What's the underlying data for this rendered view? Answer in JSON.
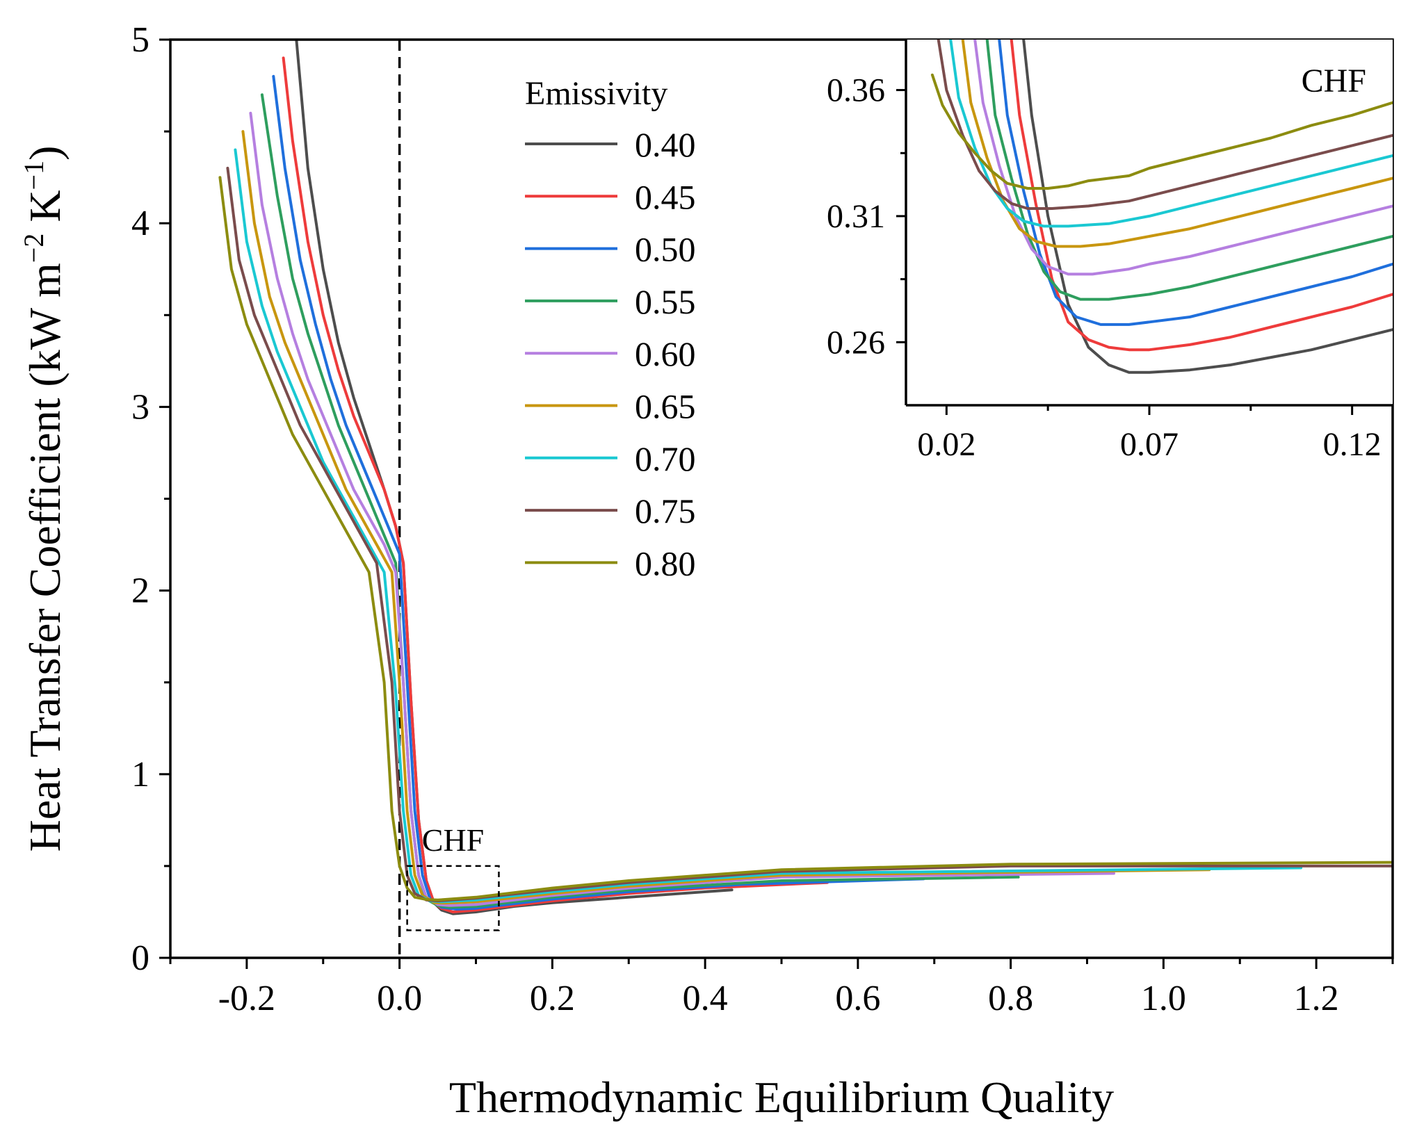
{
  "chart_data": [
    {
      "id": "main",
      "type": "line",
      "title": "",
      "xlabel": "Thermodynamic Equilibrium Quality",
      "ylabel": "Heat Transfer Coefficient (kW m−2 K−1)",
      "ylabel_parts": [
        "Heat Transfer Coefficient (kW m",
        "−2",
        " K",
        "−1",
        ")"
      ],
      "xlim": [
        -0.3,
        1.3
      ],
      "ylim": [
        0,
        5
      ],
      "xticks": [
        -0.2,
        0.0,
        0.2,
        0.4,
        0.6,
        0.8,
        1.0,
        1.2
      ],
      "xtick_labels": [
        "-0.2",
        "0.0",
        "0.2",
        "0.4",
        "0.6",
        "0.8",
        "1.0",
        "1.2"
      ],
      "yticks": [
        0,
        1,
        2,
        3,
        4,
        5
      ],
      "ytick_labels": [
        "0",
        "1",
        "2",
        "3",
        "4",
        "5"
      ],
      "grid": false,
      "legend": {
        "title": "Emissivity",
        "placement": "top-center",
        "entries": [
          "0.40",
          "0.45",
          "0.50",
          "0.55",
          "0.60",
          "0.65",
          "0.70",
          "0.75",
          "0.80"
        ]
      },
      "annotations": {
        "saturation_line_x": 0.0,
        "chf_label": "CHF",
        "chf_box": {
          "x": [
            0.01,
            0.13
          ],
          "y": [
            0.15,
            0.5
          ]
        }
      },
      "series": [
        {
          "name": "0.40",
          "color": "#4d4d4d",
          "x": [
            -0.135,
            -0.12,
            -0.1,
            -0.08,
            -0.06,
            -0.04,
            -0.02,
            -0.005,
            0.005,
            0.015,
            0.025,
            0.035,
            0.045,
            0.055,
            0.07,
            0.1,
            0.15,
            0.2,
            0.3,
            0.435
          ],
          "y": [
            5.0,
            4.3,
            3.75,
            3.35,
            3.05,
            2.8,
            2.55,
            2.35,
            2.15,
            1.4,
            0.75,
            0.42,
            0.3,
            0.26,
            0.24,
            0.25,
            0.28,
            0.3,
            0.33,
            0.37
          ]
        },
        {
          "name": "0.45",
          "color": "#ee3b3b",
          "x": [
            -0.152,
            -0.14,
            -0.12,
            -0.1,
            -0.08,
            -0.06,
            -0.04,
            -0.02,
            -0.005,
            0.005,
            0.015,
            0.025,
            0.035,
            0.045,
            0.055,
            0.07,
            0.1,
            0.2,
            0.3,
            0.4,
            0.56
          ],
          "y": [
            4.9,
            4.45,
            3.9,
            3.5,
            3.2,
            2.95,
            2.75,
            2.55,
            2.35,
            2.15,
            1.4,
            0.75,
            0.42,
            0.3,
            0.27,
            0.25,
            0.26,
            0.31,
            0.35,
            0.38,
            0.41
          ]
        },
        {
          "name": "0.50",
          "color": "#1f6fdc",
          "x": [
            -0.165,
            -0.15,
            -0.13,
            -0.11,
            -0.09,
            -0.07,
            -0.05,
            -0.03,
            -0.01,
            0.0,
            0.01,
            0.02,
            0.03,
            0.04,
            0.055,
            0.075,
            0.1,
            0.2,
            0.3,
            0.45,
            0.686
          ],
          "y": [
            4.8,
            4.3,
            3.8,
            3.45,
            3.15,
            2.9,
            2.7,
            2.5,
            2.3,
            2.2,
            1.5,
            0.8,
            0.45,
            0.32,
            0.275,
            0.265,
            0.27,
            0.32,
            0.36,
            0.4,
            0.43
          ]
        },
        {
          "name": "0.55",
          "color": "#2e9e5e",
          "x": [
            -0.18,
            -0.16,
            -0.14,
            -0.12,
            -0.1,
            -0.08,
            -0.06,
            -0.04,
            -0.02,
            -0.005,
            0.005,
            0.015,
            0.025,
            0.035,
            0.05,
            0.065,
            0.1,
            0.2,
            0.3,
            0.5,
            0.81
          ],
          "y": [
            4.7,
            4.15,
            3.7,
            3.4,
            3.15,
            2.9,
            2.7,
            2.5,
            2.3,
            2.15,
            1.5,
            0.8,
            0.45,
            0.32,
            0.285,
            0.275,
            0.28,
            0.33,
            0.37,
            0.42,
            0.44
          ]
        },
        {
          "name": "0.60",
          "color": "#b57fe0",
          "x": [
            -0.195,
            -0.18,
            -0.16,
            -0.14,
            -0.12,
            -0.1,
            -0.08,
            -0.06,
            -0.04,
            -0.02,
            -0.005,
            0.005,
            0.015,
            0.025,
            0.035,
            0.05,
            0.065,
            0.1,
            0.2,
            0.3,
            0.5,
            0.935
          ],
          "y": [
            4.6,
            4.1,
            3.7,
            3.4,
            3.15,
            2.95,
            2.75,
            2.55,
            2.4,
            2.25,
            2.1,
            1.5,
            0.8,
            0.45,
            0.33,
            0.29,
            0.285,
            0.29,
            0.34,
            0.38,
            0.44,
            0.46
          ]
        },
        {
          "name": "0.65",
          "color": "#c8960f",
          "x": [
            -0.205,
            -0.19,
            -0.17,
            -0.15,
            -0.13,
            -0.11,
            -0.09,
            -0.07,
            -0.05,
            -0.03,
            -0.01,
            0.0,
            0.01,
            0.02,
            0.03,
            0.045,
            0.06,
            0.1,
            0.2,
            0.3,
            0.5,
            1.06
          ],
          "y": [
            4.5,
            4.0,
            3.6,
            3.35,
            3.15,
            2.95,
            2.75,
            2.55,
            2.4,
            2.25,
            2.1,
            1.5,
            0.8,
            0.45,
            0.34,
            0.3,
            0.298,
            0.305,
            0.35,
            0.39,
            0.45,
            0.48
          ]
        },
        {
          "name": "0.70",
          "color": "#1ac8d2",
          "x": [
            -0.215,
            -0.2,
            -0.18,
            -0.16,
            -0.14,
            -0.12,
            -0.1,
            -0.08,
            -0.06,
            -0.04,
            -0.02,
            -0.005,
            0.005,
            0.015,
            0.025,
            0.04,
            0.055,
            0.1,
            0.2,
            0.3,
            0.5,
            1.18
          ],
          "y": [
            4.4,
            3.9,
            3.55,
            3.3,
            3.1,
            2.9,
            2.7,
            2.55,
            2.4,
            2.25,
            2.1,
            1.45,
            0.8,
            0.45,
            0.34,
            0.31,
            0.305,
            0.315,
            0.36,
            0.4,
            0.46,
            0.49
          ]
        },
        {
          "name": "0.75",
          "color": "#7a4c4c",
          "x": [
            -0.225,
            -0.21,
            -0.19,
            -0.17,
            -0.15,
            -0.13,
            -0.11,
            -0.09,
            -0.07,
            -0.05,
            -0.03,
            -0.01,
            0.0,
            0.01,
            0.02,
            0.035,
            0.05,
            0.1,
            0.2,
            0.3,
            0.5,
            0.8,
            1.3
          ],
          "y": [
            4.3,
            3.8,
            3.5,
            3.3,
            3.1,
            2.9,
            2.75,
            2.6,
            2.45,
            2.3,
            2.15,
            1.5,
            0.8,
            0.45,
            0.35,
            0.315,
            0.31,
            0.325,
            0.37,
            0.41,
            0.47,
            0.5,
            0.5
          ]
        },
        {
          "name": "0.80",
          "color": "#8c8c10",
          "x": [
            -0.235,
            -0.22,
            -0.2,
            -0.18,
            -0.16,
            -0.14,
            -0.12,
            -0.1,
            -0.08,
            -0.06,
            -0.04,
            -0.02,
            -0.01,
            0.0,
            0.01,
            0.02,
            0.035,
            0.05,
            0.1,
            0.2,
            0.3,
            0.5,
            0.8,
            1.3
          ],
          "y": [
            4.25,
            3.75,
            3.45,
            3.25,
            3.05,
            2.85,
            2.7,
            2.55,
            2.4,
            2.25,
            2.1,
            1.5,
            0.8,
            0.5,
            0.38,
            0.33,
            0.318,
            0.315,
            0.33,
            0.38,
            0.42,
            0.48,
            0.51,
            0.52
          ]
        }
      ]
    },
    {
      "id": "inset",
      "type": "line",
      "title": "CHF",
      "xlabel": "",
      "ylabel": "",
      "xlim": [
        0.01,
        0.13
      ],
      "ylim": [
        0.235,
        0.38
      ],
      "xticks": [
        0.02,
        0.07,
        0.12
      ],
      "xtick_labels": [
        "0.02",
        "0.07",
        "0.12"
      ],
      "yticks": [
        0.26,
        0.31,
        0.36
      ],
      "ytick_labels": [
        "0.26",
        "0.31",
        "0.36"
      ],
      "grid": false,
      "series": [
        {
          "name": "0.40",
          "color": "#4d4d4d",
          "x": [
            0.039,
            0.041,
            0.045,
            0.05,
            0.055,
            0.06,
            0.065,
            0.07,
            0.08,
            0.09,
            0.1,
            0.11,
            0.12,
            0.13
          ],
          "y": [
            0.38,
            0.35,
            0.31,
            0.275,
            0.258,
            0.251,
            0.248,
            0.248,
            0.249,
            0.251,
            0.254,
            0.257,
            0.261,
            0.265
          ]
        },
        {
          "name": "0.45",
          "color": "#ee3b3b",
          "x": [
            0.036,
            0.038,
            0.042,
            0.046,
            0.05,
            0.055,
            0.06,
            0.065,
            0.07,
            0.08,
            0.09,
            0.1,
            0.11,
            0.12,
            0.13
          ],
          "y": [
            0.38,
            0.35,
            0.315,
            0.285,
            0.268,
            0.261,
            0.258,
            0.257,
            0.257,
            0.259,
            0.262,
            0.266,
            0.27,
            0.274,
            0.279
          ]
        },
        {
          "name": "0.50",
          "color": "#1f6fdc",
          "x": [
            0.033,
            0.035,
            0.039,
            0.043,
            0.047,
            0.052,
            0.058,
            0.065,
            0.07,
            0.08,
            0.09,
            0.1,
            0.11,
            0.12,
            0.13
          ],
          "y": [
            0.38,
            0.35,
            0.32,
            0.295,
            0.278,
            0.27,
            0.267,
            0.267,
            0.268,
            0.27,
            0.274,
            0.278,
            0.282,
            0.286,
            0.291
          ]
        },
        {
          "name": "0.55",
          "color": "#2e9e5e",
          "x": [
            0.03,
            0.032,
            0.036,
            0.04,
            0.044,
            0.048,
            0.053,
            0.06,
            0.07,
            0.08,
            0.09,
            0.1,
            0.11,
            0.12,
            0.13
          ],
          "y": [
            0.38,
            0.35,
            0.325,
            0.303,
            0.288,
            0.28,
            0.277,
            0.277,
            0.279,
            0.282,
            0.286,
            0.29,
            0.294,
            0.298,
            0.302
          ]
        },
        {
          "name": "0.60",
          "color": "#b57fe0",
          "x": [
            0.027,
            0.029,
            0.033,
            0.037,
            0.041,
            0.045,
            0.05,
            0.056,
            0.065,
            0.07,
            0.08,
            0.09,
            0.1,
            0.11,
            0.12,
            0.13
          ],
          "y": [
            0.38,
            0.355,
            0.33,
            0.31,
            0.297,
            0.29,
            0.287,
            0.287,
            0.289,
            0.291,
            0.294,
            0.298,
            0.302,
            0.306,
            0.31,
            0.314
          ]
        },
        {
          "name": "0.65",
          "color": "#c8960f",
          "x": [
            0.024,
            0.026,
            0.03,
            0.034,
            0.038,
            0.042,
            0.047,
            0.053,
            0.06,
            0.07,
            0.08,
            0.09,
            0.1,
            0.11,
            0.12,
            0.13
          ],
          "y": [
            0.38,
            0.355,
            0.333,
            0.316,
            0.305,
            0.3,
            0.298,
            0.298,
            0.299,
            0.302,
            0.305,
            0.309,
            0.313,
            0.317,
            0.321,
            0.325
          ]
        },
        {
          "name": "0.70",
          "color": "#1ac8d2",
          "x": [
            0.021,
            0.023,
            0.027,
            0.031,
            0.035,
            0.039,
            0.044,
            0.05,
            0.06,
            0.07,
            0.08,
            0.09,
            0.1,
            0.11,
            0.12,
            0.13
          ],
          "y": [
            0.38,
            0.357,
            0.337,
            0.322,
            0.313,
            0.308,
            0.306,
            0.306,
            0.307,
            0.31,
            0.314,
            0.318,
            0.322,
            0.326,
            0.33,
            0.334
          ]
        },
        {
          "name": "0.75",
          "color": "#7a4c4c",
          "x": [
            0.018,
            0.02,
            0.024,
            0.028,
            0.032,
            0.036,
            0.04,
            0.046,
            0.055,
            0.065,
            0.07,
            0.08,
            0.09,
            0.1,
            0.11,
            0.12,
            0.13
          ],
          "y": [
            0.38,
            0.36,
            0.342,
            0.328,
            0.32,
            0.315,
            0.313,
            0.313,
            0.314,
            0.316,
            0.318,
            0.322,
            0.326,
            0.33,
            0.334,
            0.338,
            0.342
          ]
        },
        {
          "name": "0.80",
          "color": "#8c8c10",
          "x": [
            0.0165,
            0.019,
            0.023,
            0.027,
            0.031,
            0.035,
            0.04,
            0.045,
            0.05,
            0.055,
            0.065,
            0.07,
            0.08,
            0.09,
            0.1,
            0.11,
            0.12,
            0.13
          ],
          "y": [
            0.366,
            0.354,
            0.343,
            0.335,
            0.328,
            0.323,
            0.321,
            0.321,
            0.322,
            0.324,
            0.326,
            0.329,
            0.333,
            0.337,
            0.341,
            0.346,
            0.35,
            0.355
          ]
        }
      ]
    }
  ]
}
